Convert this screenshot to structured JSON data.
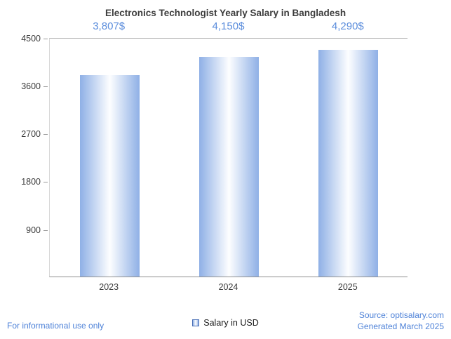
{
  "chart_data": {
    "type": "bar",
    "title": "Electronics Technologist Yearly Salary in Bangladesh",
    "categories": [
      "2023",
      "2024",
      "2025"
    ],
    "values": [
      3807,
      4150,
      4290
    ],
    "value_labels": [
      "3,807$",
      "4,150$",
      "4,290$"
    ],
    "series": [
      {
        "name": "Salary in USD",
        "values": [
          3807,
          4150,
          4290
        ]
      }
    ],
    "y_ticks": [
      "4500",
      "3600",
      "2700",
      "1800",
      "900"
    ],
    "ylim": [
      0,
      4500
    ],
    "xlabel": "",
    "ylabel": "",
    "grid": false,
    "legend_position": "bottom",
    "bar_gradient": [
      "#8fb0e6",
      "#ffffff",
      "#8fb0e6"
    ],
    "accent_text_color": "#5b8ddc"
  },
  "legend": {
    "label": "Salary in USD"
  },
  "footer": {
    "disclaimer": "For informational use only",
    "source": "Source: optisalary.com",
    "generated": "Generated March 2025"
  }
}
